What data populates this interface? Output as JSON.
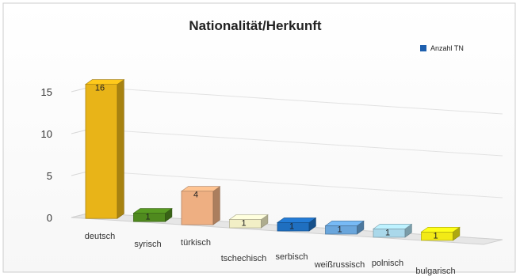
{
  "chart_data": {
    "type": "bar",
    "title": "Nationalität/Herkunft",
    "xlabel": "",
    "ylabel": "",
    "categories": [
      "deutsch",
      "syrisch",
      "türkisch",
      "tschechisch",
      "serbisch",
      "weißrussisch",
      "polnisch",
      "bulgarisch"
    ],
    "series": [
      {
        "name": "Anzahl TN",
        "values": [
          16,
          1,
          4,
          1,
          1,
          1,
          1,
          1
        ],
        "data_labels": [
          "16",
          "1",
          "4",
          "1",
          "1",
          "1",
          "1",
          "1"
        ],
        "colors": [
          "#e8b418",
          "#4f8a1e",
          "#eeaf82",
          "#f2efc6",
          "#1f6fc0",
          "#6aa6dc",
          "#aad8ea",
          "#f2ea16"
        ]
      }
    ],
    "y_ticks": [
      "0",
      "5",
      "10",
      "15"
    ],
    "ylim": [
      0,
      18
    ],
    "grid": true,
    "legend_position": "top-right",
    "legend_color": "#1d5fae",
    "style": "3d-columns"
  }
}
